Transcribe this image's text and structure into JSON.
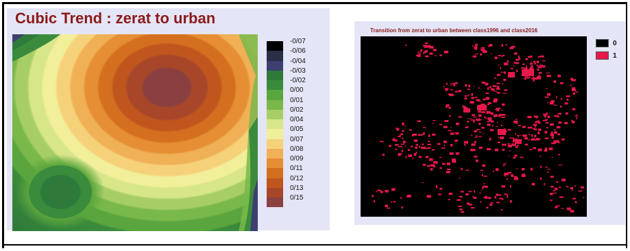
{
  "left_panel": {
    "title": "Cubic Trend : zerat to urban",
    "colorbar": {
      "labels": [
        "-0/07",
        "-0/06",
        "-0/04",
        "-0/03",
        "-0/02",
        "0/00",
        "0/01",
        "0/02",
        "0/04",
        "0/05",
        "0/07",
        "0/08",
        "0/09",
        "0/11",
        "0/12",
        "0/13",
        "0/15"
      ],
      "colors": [
        "#000000",
        "#2a2f45",
        "#3d3f70",
        "#2f7a3a",
        "#3b8b3c",
        "#5aa53d",
        "#79b84a",
        "#a7ce66",
        "#d8e68a",
        "#f2ef9a",
        "#f5d27a",
        "#f0b056",
        "#e58e33",
        "#d46f1f",
        "#c0561e",
        "#a8462a",
        "#8a4040"
      ]
    }
  },
  "right_panel": {
    "title": "Transition from zerat to urban between class1996 and class2016",
    "legend": [
      {
        "label": "0",
        "color": "#000000"
      },
      {
        "label": "1",
        "color": "#e8184a"
      }
    ]
  }
}
